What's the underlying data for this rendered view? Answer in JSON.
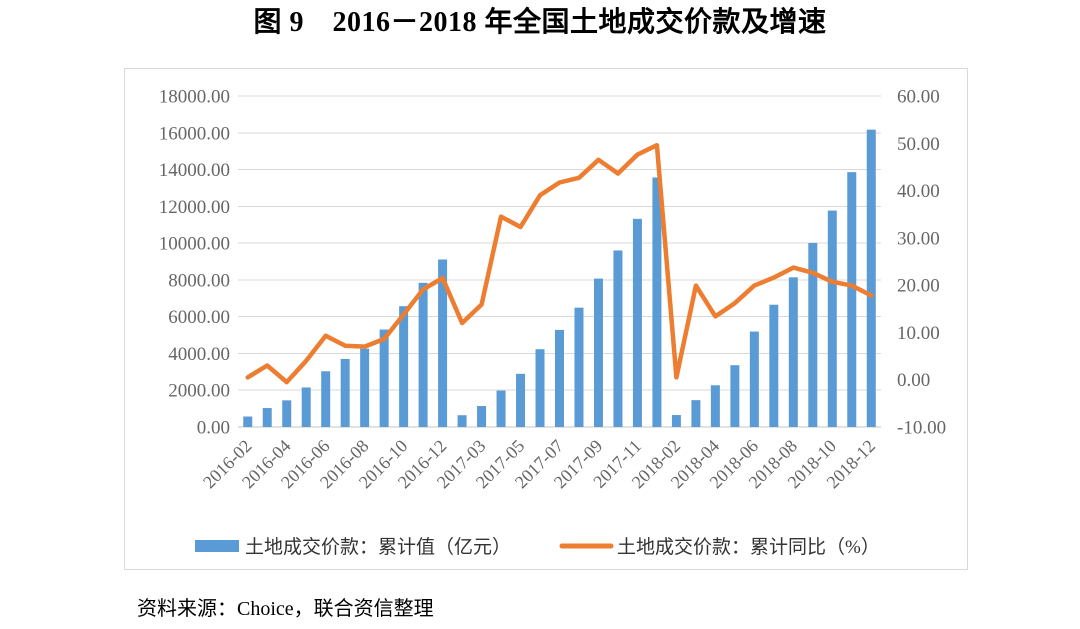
{
  "page": {
    "title": "图 9　2016－2018 年全国土地成交价款及增速",
    "source_note": "资料来源：Choice，联合资信整理"
  },
  "chart_data": {
    "type": "bar+line",
    "title": "图 9　2016－2018 年全国土地成交价款及增速",
    "categories": [
      "2016-02",
      "2016-03",
      "2016-04",
      "2016-05",
      "2016-06",
      "2016-07",
      "2016-08",
      "2016-09",
      "2016-10",
      "2016-11",
      "2016-12",
      "2017-02",
      "2017-03",
      "2017-04",
      "2017-05",
      "2017-06",
      "2017-07",
      "2017-08",
      "2017-09",
      "2017-10",
      "2017-11",
      "2017-12",
      "2018-02",
      "2018-03",
      "2018-04",
      "2018-05",
      "2018-06",
      "2018-07",
      "2018-08",
      "2018-09",
      "2018-10",
      "2018-11",
      "2018-12"
    ],
    "x_tick_labels": [
      "2016-02",
      "2016-04",
      "2016-06",
      "2016-08",
      "2016-10",
      "2016-12",
      "2017-03",
      "2017-05",
      "2017-07",
      "2017-09",
      "2017-11",
      "2018-02",
      "2018-04",
      "2018-06",
      "2018-08",
      "2018-10",
      "2018-12"
    ],
    "series": [
      {
        "name": "土地成交价款：累计值（亿元）",
        "type": "bar",
        "axis": "left",
        "color": "#5B9BD5",
        "values": [
          570,
          1030,
          1450,
          2150,
          3030,
          3700,
          4260,
          5300,
          6570,
          7840,
          9110,
          640,
          1140,
          1980,
          2890,
          4230,
          5280,
          6490,
          8070,
          9600,
          11320,
          13570,
          650,
          1460,
          2270,
          3360,
          5190,
          6650,
          8140,
          10010,
          11770,
          13860,
          16170
        ]
      },
      {
        "name": "土地成交价款：累计同比（%）",
        "type": "line",
        "axis": "right",
        "color": "#ED7D31",
        "values": [
          0.5,
          3.0,
          -0.5,
          4.0,
          9.3,
          7.2,
          7.0,
          8.6,
          13.8,
          19.1,
          21.5,
          12.0,
          15.9,
          34.5,
          32.3,
          39.0,
          41.7,
          42.7,
          46.5,
          43.6,
          47.6,
          49.6,
          0.5,
          19.9,
          13.4,
          16.2,
          19.9,
          21.6,
          23.7,
          22.6,
          20.7,
          19.9,
          17.8
        ]
      }
    ],
    "y_axis_left": {
      "min": 0,
      "max": 18000,
      "step": 2000,
      "tick_labels": [
        "0.00",
        "2000.00",
        "4000.00",
        "6000.00",
        "8000.00",
        "10000.00",
        "12000.00",
        "14000.00",
        "16000.00",
        "18000.00"
      ]
    },
    "y_axis_right": {
      "min": -10,
      "max": 60,
      "step": 10,
      "tick_labels": [
        "-10.00",
        "0.00",
        "10.00",
        "20.00",
        "30.00",
        "40.00",
        "50.00",
        "60.00"
      ]
    },
    "grid": true,
    "legend_position": "bottom",
    "styles": {
      "grid_color": "#d9d9d9",
      "axis_line_color": "#c6c6c6",
      "tick_text_color": "#666666",
      "legend_text_color": "#333333",
      "frame_border_color": "#d9d9d9",
      "background": "#ffffff"
    }
  }
}
